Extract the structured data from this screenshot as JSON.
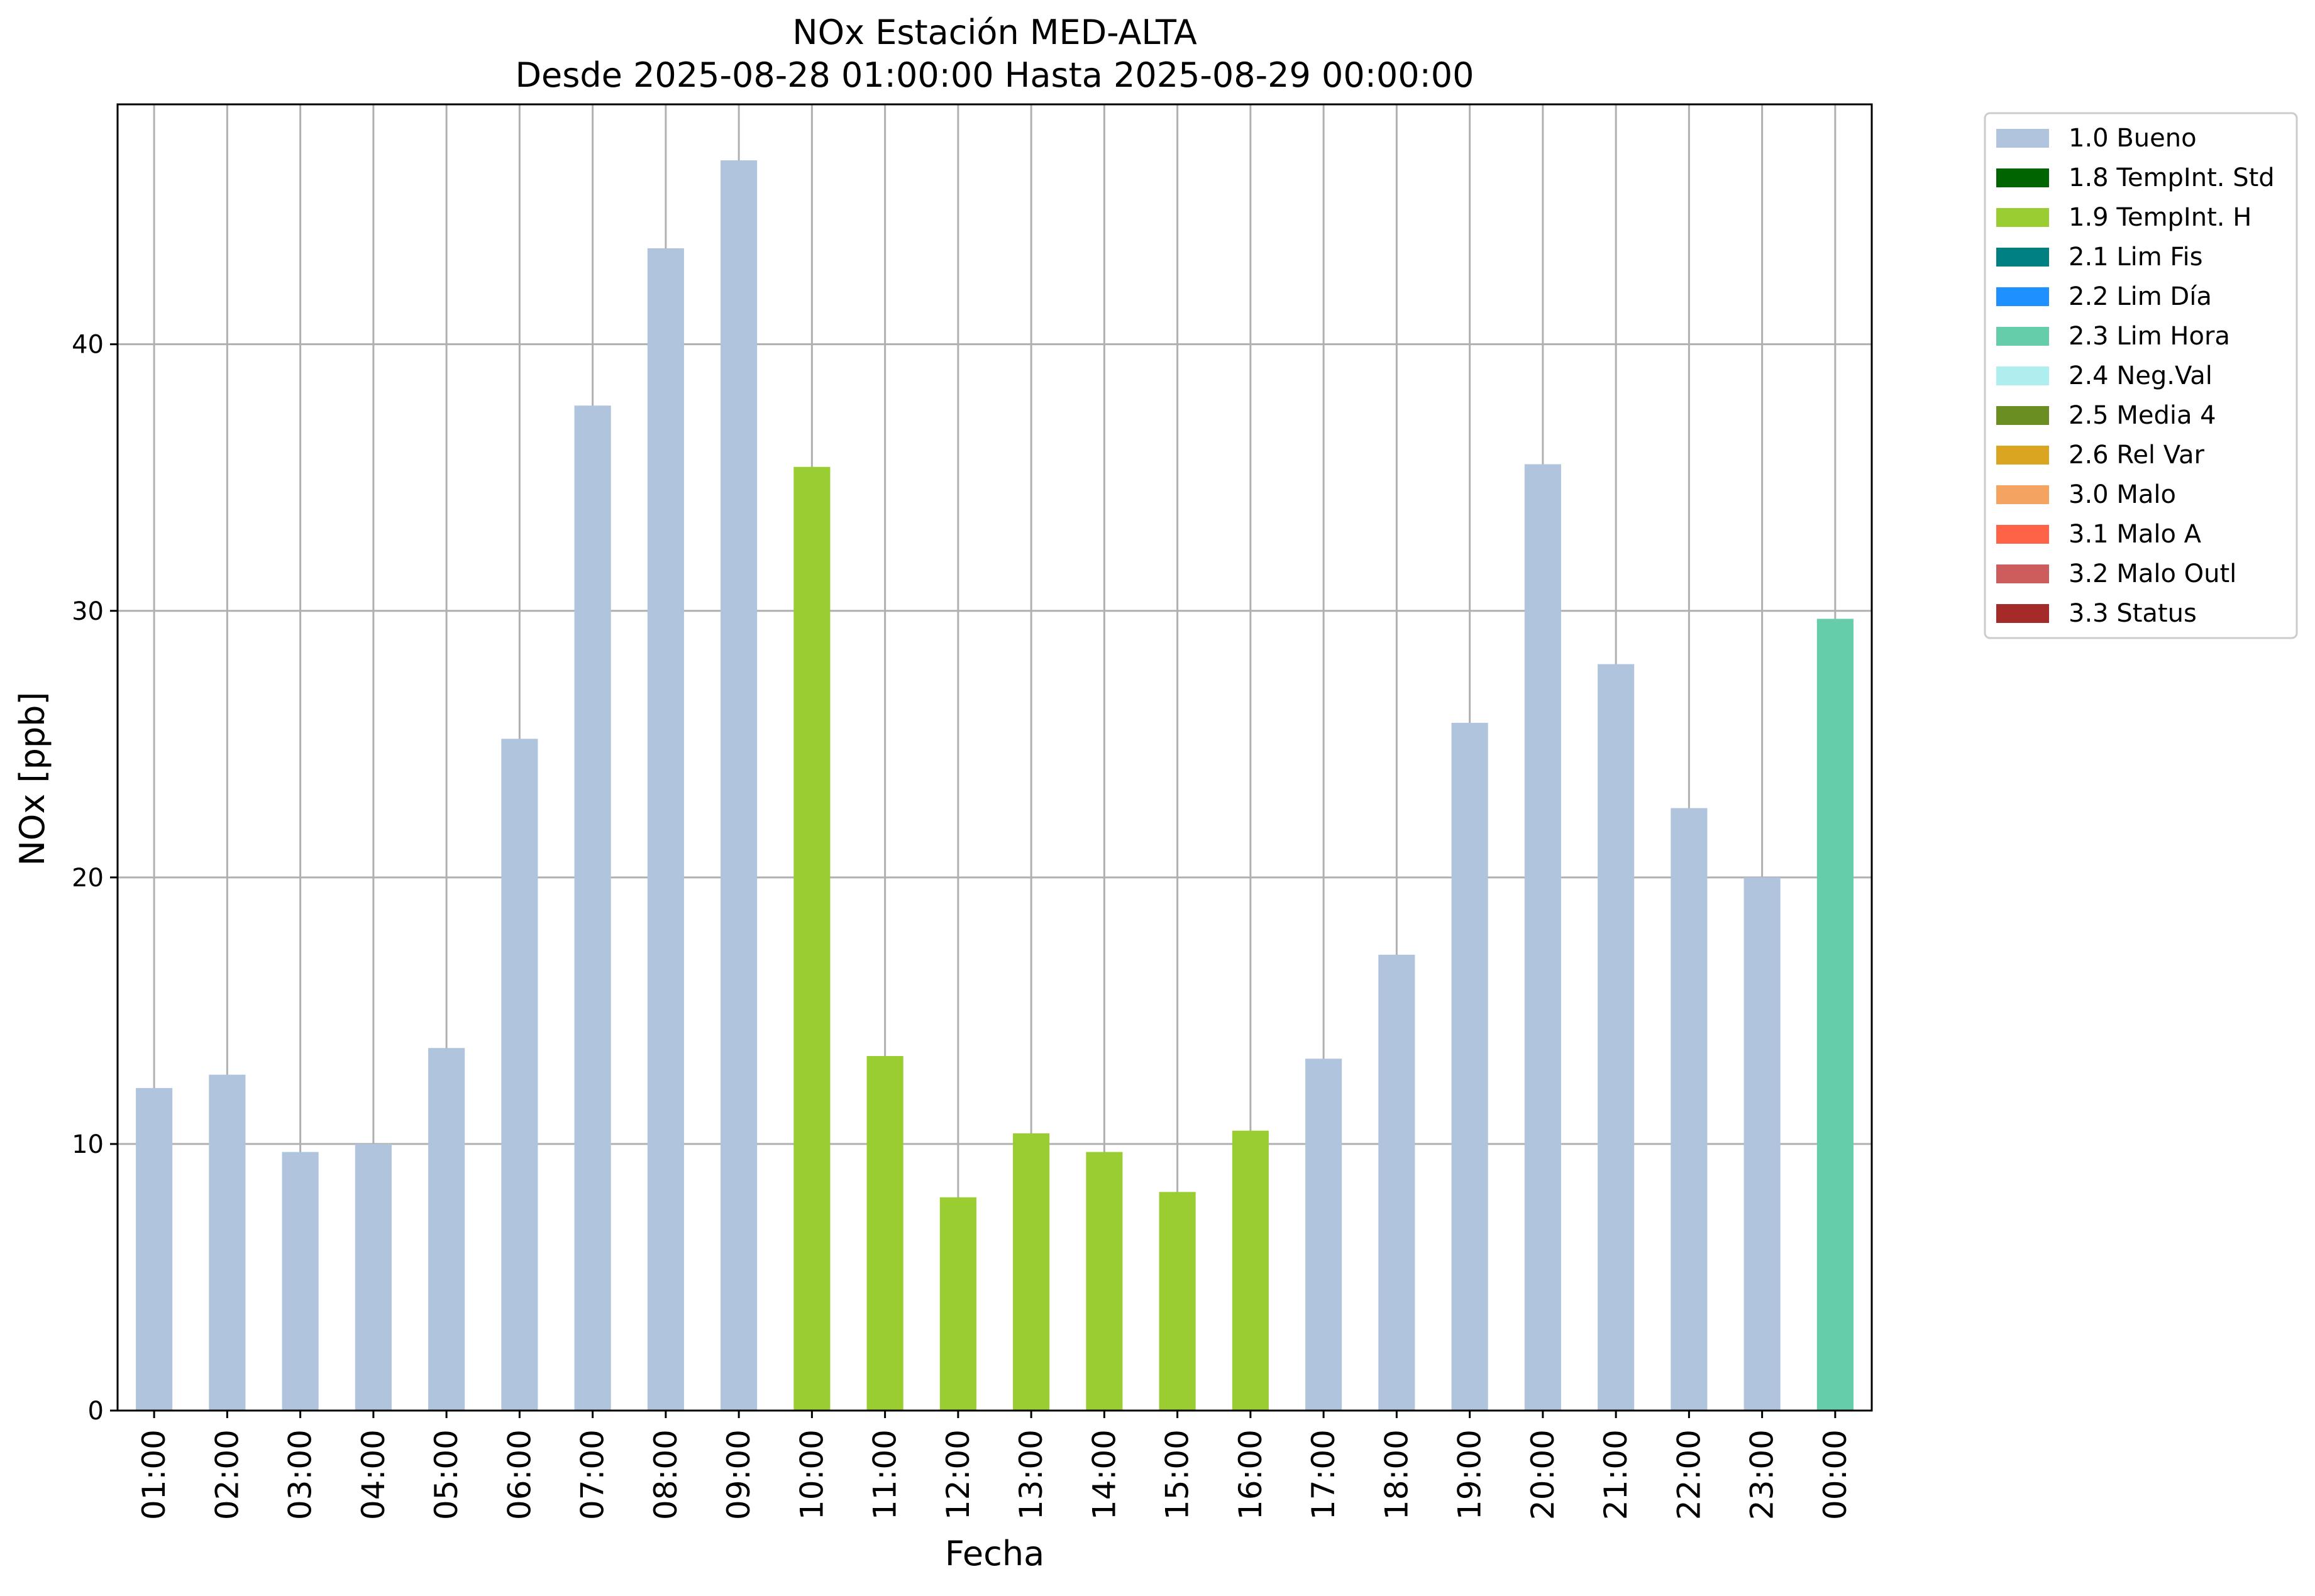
{
  "chart_data": {
    "type": "bar",
    "title_line1": "NOx Estación MED-ALTA",
    "title_line2": "Desde 2025-08-28 01:00:00 Hasta 2025-08-29 00:00:00",
    "xlabel": "Fecha",
    "ylabel": "NOx [ppb]",
    "ylim": [
      0,
      49
    ],
    "yticks": [
      0,
      10,
      20,
      30,
      40
    ],
    "grid": true,
    "legend_position": "outside-top-right",
    "categories": [
      "01:00",
      "02:00",
      "03:00",
      "04:00",
      "05:00",
      "06:00",
      "07:00",
      "08:00",
      "09:00",
      "10:00",
      "11:00",
      "12:00",
      "13:00",
      "14:00",
      "15:00",
      "16:00",
      "17:00",
      "18:00",
      "19:00",
      "20:00",
      "21:00",
      "22:00",
      "23:00",
      "00:00"
    ],
    "values": [
      12.1,
      12.6,
      9.7,
      10.0,
      13.6,
      25.2,
      37.7,
      43.6,
      46.9,
      35.4,
      13.3,
      8.0,
      10.4,
      9.7,
      8.2,
      10.5,
      13.2,
      17.1,
      25.8,
      35.5,
      28.0,
      22.6,
      20.0,
      29.7
    ],
    "flags": [
      "1.0 Bueno",
      "1.0 Bueno",
      "1.0 Bueno",
      "1.0 Bueno",
      "1.0 Bueno",
      "1.0 Bueno",
      "1.0 Bueno",
      "1.0 Bueno",
      "1.0 Bueno",
      "1.9 TempInt. H",
      "1.9 TempInt. H",
      "1.9 TempInt. H",
      "1.9 TempInt. H",
      "1.9 TempInt. H",
      "1.9 TempInt. H",
      "1.9 TempInt. H",
      "1.0 Bueno",
      "1.0 Bueno",
      "1.0 Bueno",
      "1.0 Bueno",
      "1.0 Bueno",
      "1.0 Bueno",
      "1.0 Bueno",
      "2.3 Lim Hora"
    ],
    "legend": [
      {
        "label": "1.0 Bueno",
        "color": "#b0c4de"
      },
      {
        "label": "1.8 TempInt. Std",
        "color": "#006400"
      },
      {
        "label": "1.9 TempInt. H",
        "color": "#9acd32"
      },
      {
        "label": "2.1 Lim Fis",
        "color": "#008080"
      },
      {
        "label": "2.2 Lim Día",
        "color": "#1e90ff"
      },
      {
        "label": "2.3 Lim Hora",
        "color": "#66cdaa"
      },
      {
        "label": "2.4 Neg.Val",
        "color": "#afeeee"
      },
      {
        "label": "2.5 Media 4",
        "color": "#6b8e23"
      },
      {
        "label": "2.6 Rel Var",
        "color": "#daa520"
      },
      {
        "label": "3.0 Malo",
        "color": "#f4a460"
      },
      {
        "label": "3.1 Malo A",
        "color": "#ff6347"
      },
      {
        "label": "3.2 Malo Outl",
        "color": "#cd5c5c"
      },
      {
        "label": "3.3 Status",
        "color": "#a52a2a"
      }
    ]
  }
}
